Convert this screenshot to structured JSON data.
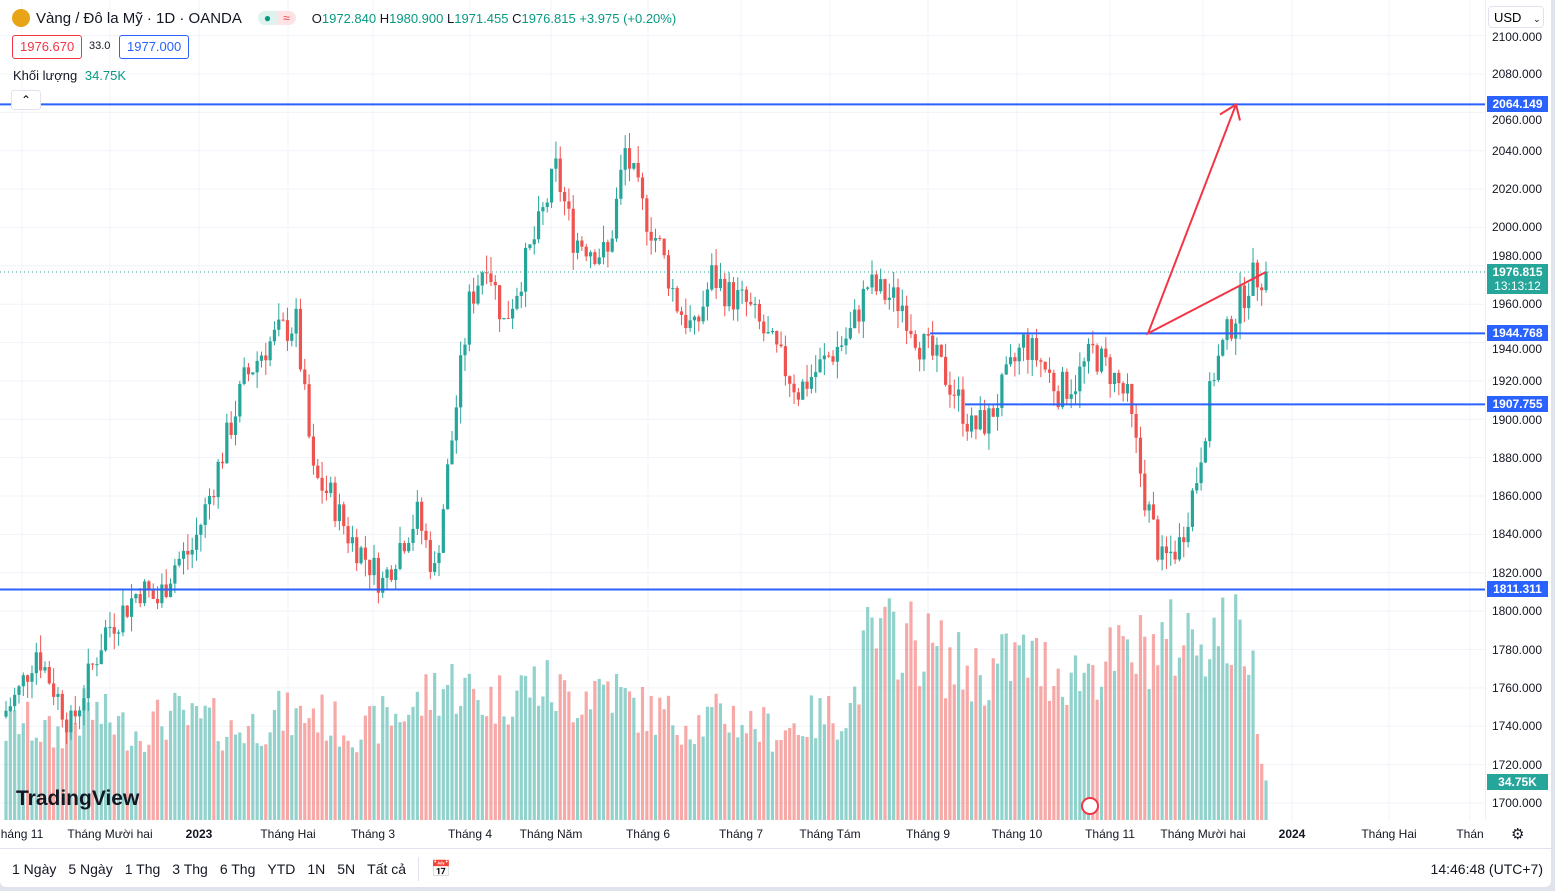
{
  "header": {
    "symbol": "Vàng / Đô la Mỹ · 1D · OANDA",
    "open_label": "O",
    "open": "1972.840",
    "high_label": "H",
    "high": "1980.900",
    "low_label": "L",
    "low": "1971.455",
    "close_label": "C",
    "close": "1976.815",
    "change": "+3.975 (+0.20%)",
    "bid": "1976.670",
    "spread": "33.0",
    "ask": "1977.000",
    "volume_label": "Khối lượng",
    "volume": "34.75K",
    "currency": "USD"
  },
  "colors": {
    "up": "#26a69a",
    "down": "#ef5350",
    "line": "#2962ff",
    "arrow": "#f23645"
  },
  "chart_data": {
    "type": "candlestick",
    "ylim": [
      1690,
      2105
    ],
    "y_ticks": [
      "2100.000",
      "2080.000",
      "2060.000",
      "2040.000",
      "2020.000",
      "2000.000",
      "1980.000",
      "1960.000",
      "1940.000",
      "1920.000",
      "1900.000",
      "1880.000",
      "1860.000",
      "1840.000",
      "1820.000",
      "1800.000",
      "1780.000",
      "1760.000",
      "1740.000",
      "1720.000",
      "1700.000"
    ],
    "x_labels": [
      "háng 11",
      "Tháng Mười hai",
      "2023",
      "Tháng Hai",
      "Tháng 3",
      "Tháng 4",
      "Tháng Năm",
      "Tháng 6",
      "Tháng 7",
      "Tháng Tám",
      "Tháng 9",
      "Tháng 10",
      "Tháng 11",
      "Tháng Mười hai",
      "2024",
      "Tháng Hai",
      "Thán"
    ],
    "key_closes": [
      1745,
      1758,
      1780,
      1760,
      1740,
      1765,
      1790,
      1800,
      1812,
      1805,
      1825,
      1832,
      1860,
      1890,
      1920,
      1935,
      1945,
      1950,
      1870,
      1860,
      1840,
      1828,
      1815,
      1835,
      1850,
      1820,
      1890,
      1960,
      1985,
      1950,
      1975,
      2000,
      2030,
      1995,
      1990,
      1985,
      2040,
      2010,
      1990,
      1960,
      1945,
      1975,
      1965,
      1960,
      1945,
      1930,
      1915,
      1925,
      1935,
      1945,
      1970,
      1965,
      1960,
      1940,
      1930,
      1915,
      1895,
      1900,
      1920,
      1940,
      1930,
      1915,
      1920,
      1935,
      1925,
      1910,
      1860,
      1825,
      1835,
      1870,
      1925,
      1950,
      1972,
      1977
    ],
    "key_volumes": [
      40,
      45,
      42,
      38,
      44,
      50,
      46,
      42,
      40,
      45,
      48,
      44,
      46,
      40,
      42,
      44,
      48,
      46,
      50,
      44,
      42,
      40,
      46,
      48,
      52,
      60,
      62,
      58,
      54,
      56,
      60,
      62,
      58,
      55,
      60,
      62,
      54,
      50,
      48,
      46,
      44,
      46,
      48,
      44,
      42,
      40,
      44,
      46,
      48,
      50,
      80,
      82,
      85,
      80,
      76,
      70,
      68,
      66,
      72,
      74,
      70,
      68,
      66,
      70,
      72,
      74,
      78,
      80,
      82,
      84,
      86,
      84,
      82,
      18
    ],
    "horizontal_levels": [
      "2064.149",
      "1944.768",
      "1907.755",
      "1811.311"
    ],
    "last_price": "1976.815",
    "countdown": "13:13:12",
    "last_volume": "34.75K",
    "arrow_prices": [
      1976.8,
      1944.8,
      2064.1
    ]
  },
  "bottom": {
    "ranges": [
      "1 Ngày",
      "5 Ngày",
      "1 Thg",
      "3 Thg",
      "6 Thg",
      "YTD",
      "1N",
      "5N",
      "Tất cả"
    ],
    "time": "14:46:48 (UTC+7)",
    "brand": "TradingView"
  }
}
